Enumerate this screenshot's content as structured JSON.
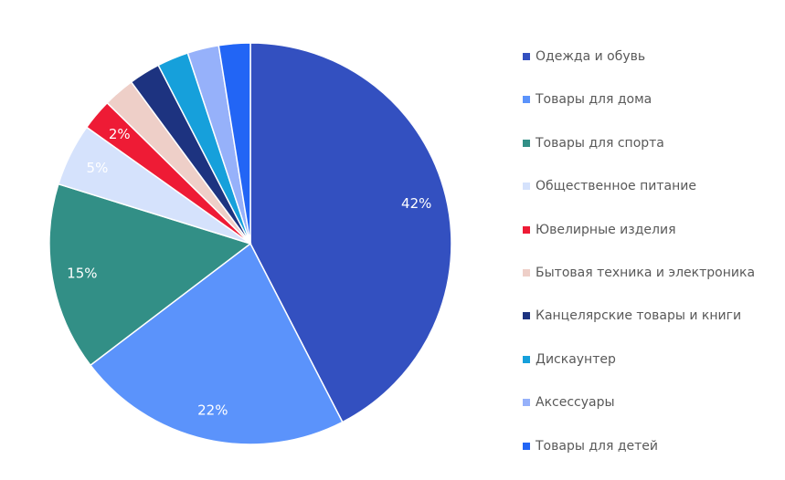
{
  "chart_data": {
    "type": "pie",
    "title": "",
    "start_angle_deg": 0,
    "direction": "clockwise",
    "legend_position": "right",
    "categories": [
      "Одежда и обувь",
      "Товары для дома",
      "Товары для спорта",
      "Общественное питание",
      "Ювелирные изделия",
      "Бытовая техника и электроника",
      "Канцелярские товары и книги",
      "Дискаунтер",
      "Аксессуары",
      "Товары для детей"
    ],
    "values": [
      42,
      22,
      15,
      5,
      2.5,
      2.5,
      2.5,
      2.5,
      2.5,
      2.5
    ],
    "data_labels": [
      "42%",
      "22%",
      "15%",
      "5%",
      "2%",
      "",
      "",
      "",
      "",
      ""
    ],
    "colors": [
      "#3350C0",
      "#5B93FB",
      "#328F86",
      "#D5E2FC",
      "#EE1B35",
      "#EECFC8",
      "#1D3380",
      "#16A0DB",
      "#96B1FA",
      "#2265F5"
    ],
    "label_color": "#FFFFFF",
    "legend_text_color": "#595959"
  }
}
